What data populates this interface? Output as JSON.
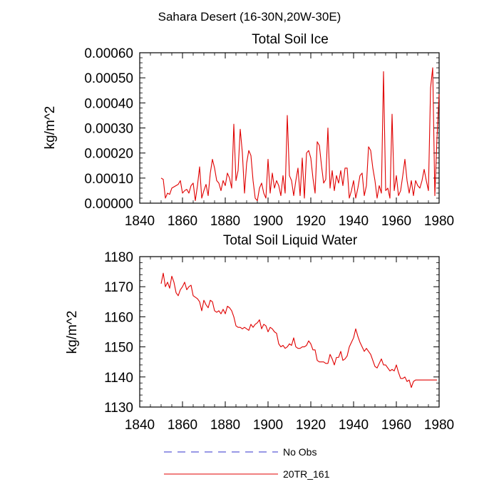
{
  "suptitle": "Sahara Desert (16-30N,20W-30E)",
  "legend": {
    "items": [
      {
        "label": "No Obs",
        "color": "#3333cc",
        "style": "dashed"
      },
      {
        "label": "20TR_161",
        "color": "#e00000",
        "style": "solid"
      }
    ]
  },
  "chart_data": [
    {
      "type": "line",
      "title": "Total Soil Ice",
      "xlabel": "",
      "ylabel": "kg/m^2",
      "xlim": [
        1840,
        1980
      ],
      "ylim": [
        0,
        0.0006
      ],
      "xticks": [
        1840,
        1860,
        1880,
        1900,
        1920,
        1940,
        1960,
        1980
      ],
      "xtick_labels": [
        "1840",
        "1860",
        "1880",
        "1900",
        "1920",
        "1940",
        "1960",
        "1980"
      ],
      "yticks": [
        0,
        0.0001,
        0.0002,
        0.0003,
        0.0004,
        0.0005,
        0.0006
      ],
      "ytick_labels": [
        "0.00000",
        "0.00010",
        "0.00020",
        "0.00030",
        "0.00040",
        "0.00050",
        "0.00060"
      ],
      "series": [
        {
          "name": "20TR_161",
          "color": "#e00000",
          "x": [
            1850,
            1851,
            1852,
            1853,
            1854,
            1855,
            1856,
            1857,
            1858,
            1859,
            1860,
            1861,
            1862,
            1863,
            1864,
            1865,
            1866,
            1867,
            1868,
            1869,
            1870,
            1871,
            1872,
            1873,
            1874,
            1875,
            1876,
            1877,
            1878,
            1879,
            1880,
            1881,
            1882,
            1883,
            1884,
            1885,
            1886,
            1887,
            1888,
            1889,
            1890,
            1891,
            1892,
            1893,
            1894,
            1895,
            1896,
            1897,
            1898,
            1899,
            1900,
            1901,
            1902,
            1903,
            1904,
            1905,
            1906,
            1907,
            1908,
            1909,
            1910,
            1911,
            1912,
            1913,
            1914,
            1915,
            1916,
            1917,
            1918,
            1919,
            1920,
            1921,
            1922,
            1923,
            1924,
            1925,
            1926,
            1927,
            1928,
            1929,
            1930,
            1931,
            1932,
            1933,
            1934,
            1935,
            1936,
            1937,
            1938,
            1939,
            1940,
            1941,
            1942,
            1943,
            1944,
            1945,
            1946,
            1947,
            1948,
            1949,
            1950,
            1951,
            1952,
            1953,
            1954,
            1955,
            1956,
            1957,
            1958,
            1959,
            1960,
            1961,
            1962,
            1963,
            1964,
            1965,
            1966,
            1967,
            1968,
            1969,
            1970,
            1971,
            1972,
            1973,
            1974,
            1975,
            1976,
            1977,
            1978
          ],
          "values": [
            0.0001,
            9.5e-05,
            2e-05,
            4e-05,
            3.5e-05,
            6e-05,
            6.5e-05,
            7e-05,
            7.5e-05,
            9e-05,
            4e-05,
            5e-05,
            5.5e-05,
            4e-05,
            7e-05,
            8e-05,
            1e-05,
            7e-05,
            0.000145,
            2e-05,
            5e-05,
            7.5e-05,
            3e-05,
            0.00012,
            0.000175,
            0.00014,
            9e-05,
            8e-05,
            5e-05,
            9e-05,
            7e-05,
            0.00012,
            0.0001,
            6e-05,
            0.000315,
            9e-05,
            0.00013,
            0.000295,
            0.0002,
            4e-05,
            0.00016,
            0.00021,
            0.00019,
            9e-05,
            2e-05,
            1e-05,
            6e-05,
            8e-05,
            4e-05,
            2e-05,
            0.000175,
            4e-05,
            0.00012,
            6e-05,
            9e-05,
            7e-05,
            3e-05,
            0.00011,
            4e-05,
            0.00035,
            0.00011,
            9e-05,
            3e-05,
            9e-05,
            0.00014,
            3e-05,
            0.00018,
            2e-05,
            0.0002,
            0.00021,
            0.00018,
            0.0001,
            4e-05,
            0.000245,
            0.00023,
            0.00015,
            8e-05,
            9.5e-05,
            0.0003,
            6e-05,
            0.00013,
            5e-05,
            0.00011,
            8e-05,
            0.00013,
            7e-05,
            0.00014,
            0.00014,
            2e-05,
            5e-05,
            9e-05,
            2e-05,
            6e-05,
            0.00011,
            0.00012,
            3e-05,
            7e-05,
            0.000225,
            0.00021,
            0.00014,
            9e-05,
            2e-05,
            7e-05,
            4e-05,
            0.000525,
            5e-05,
            6e-05,
            2e-05,
            0.000355,
            5e-05,
            0.00011,
            3e-05,
            5e-05,
            0.00011,
            0.000175,
            9e-05,
            4e-05,
            9e-05,
            3e-05,
            9e-05,
            7e-05,
            6e-05,
            9e-05,
            0.000135,
            9e-05,
            5e-05,
            0.00046,
            0.00054,
            3e-05
          ],
          "extra_points": [
            [
              1979,
              0.00026
            ],
            [
              1980,
              0.000435
            ]
          ]
        }
      ]
    },
    {
      "type": "line",
      "title": "Total Soil Liquid Water",
      "xlabel": "",
      "ylabel": "kg/m^2",
      "xlim": [
        1840,
        1980
      ],
      "ylim": [
        1130,
        1180
      ],
      "xticks": [
        1840,
        1860,
        1880,
        1900,
        1920,
        1940,
        1960,
        1980
      ],
      "xtick_labels": [
        "1840",
        "1860",
        "1880",
        "1900",
        "1920",
        "1940",
        "1960",
        "1980"
      ],
      "yticks": [
        1130,
        1140,
        1150,
        1160,
        1170,
        1180
      ],
      "ytick_labels": [
        "1130",
        "1140",
        "1150",
        "1160",
        "1170",
        "1180"
      ],
      "series": [
        {
          "name": "20TR_161",
          "color": "#e00000",
          "x": [
            1850,
            1851,
            1852,
            1853,
            1854,
            1855,
            1856,
            1857,
            1858,
            1859,
            1860,
            1861,
            1862,
            1863,
            1864,
            1865,
            1866,
            1867,
            1868,
            1869,
            1870,
            1871,
            1872,
            1873,
            1874,
            1875,
            1876,
            1877,
            1878,
            1879,
            1880,
            1881,
            1882,
            1883,
            1884,
            1885,
            1886,
            1887,
            1888,
            1889,
            1890,
            1891,
            1892,
            1893,
            1894,
            1895,
            1896,
            1897,
            1898,
            1899,
            1900,
            1901,
            1902,
            1903,
            1904,
            1905,
            1906,
            1907,
            1908,
            1909,
            1910,
            1911,
            1912,
            1913,
            1914,
            1915,
            1916,
            1917,
            1918,
            1919,
            1920,
            1921,
            1922,
            1923,
            1924,
            1925,
            1926,
            1927,
            1928,
            1929,
            1930,
            1931,
            1932,
            1933,
            1934,
            1935,
            1936,
            1937,
            1938,
            1939,
            1940,
            1941,
            1942,
            1943,
            1944,
            1945,
            1946,
            1947,
            1948,
            1949,
            1950,
            1951,
            1952,
            1953,
            1954,
            1955,
            1956,
            1957,
            1958,
            1959,
            1960,
            1961,
            1962,
            1963,
            1964,
            1965,
            1966,
            1967,
            1968,
            1969,
            1970,
            1971,
            1972,
            1973,
            1974,
            1975,
            1976,
            1977,
            1978,
            1979
          ],
          "values": [
            1171,
            1174.5,
            1170,
            1171.5,
            1169.5,
            1173.5,
            1171.5,
            1168,
            1167,
            1169,
            1170,
            1171.5,
            1169,
            1170,
            1170.5,
            1167,
            1166.5,
            1166,
            1165,
            1162,
            1165.5,
            1164,
            1163,
            1165.5,
            1165,
            1162,
            1161.5,
            1162,
            1161,
            1162.5,
            1161,
            1163.5,
            1163,
            1162,
            1160,
            1157,
            1156.5,
            1156.5,
            1156,
            1156.5,
            1156,
            1155.5,
            1157.5,
            1156.5,
            1157.5,
            1158,
            1159,
            1156,
            1157.5,
            1157,
            1155,
            1156.5,
            1156,
            1155,
            1154.5,
            1151,
            1150,
            1150.5,
            1149.5,
            1150,
            1151,
            1150.5,
            1153,
            1150,
            1149.5,
            1149.5,
            1150,
            1150,
            1150.5,
            1152,
            1151,
            1149,
            1149,
            1145.5,
            1145,
            1145,
            1145,
            1144.5,
            1144.5,
            1147.5,
            1146,
            1144,
            1146.5,
            1146.5,
            1148.5,
            1145.5,
            1146,
            1147,
            1150,
            1151.5,
            1153,
            1156,
            1153.5,
            1151.5,
            1150,
            1148.5,
            1149.5,
            1148.5,
            1147.5,
            1145.5,
            1143.5,
            1143,
            1144.5,
            1146,
            1144,
            1144,
            1143,
            1142,
            1142.5,
            1142,
            1144,
            1141.5,
            1139.5,
            1139.5,
            1140,
            1138.5,
            1139,
            1136.5,
            1138.5,
            1139,
            1139,
            1139,
            1139,
            1139,
            1139,
            1139,
            1139,
            1139,
            1139,
            1139
          ],
          "trim_to": 1979
        }
      ]
    }
  ]
}
